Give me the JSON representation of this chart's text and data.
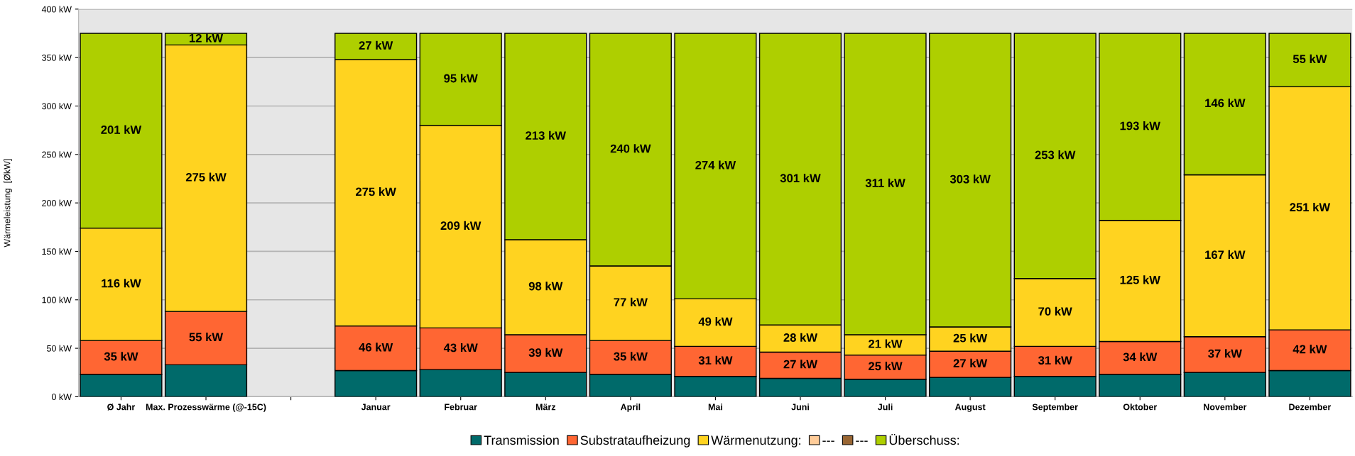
{
  "chart_data": {
    "type": "bar",
    "stacked": true,
    "ylabel": "Wärmeleistung  [ØkW]",
    "categories": [
      "Ø Jahr",
      "Max. Prozesswärme (@-15C)",
      null,
      "Januar",
      "Februar",
      "März",
      "April",
      "Mai",
      "Juni",
      "Juli",
      "August",
      "September",
      "Oktober",
      "November",
      "Dezember"
    ],
    "ylim": [
      0,
      400
    ],
    "yticks": [
      {
        "value": 0,
        "label": "0 kW"
      },
      {
        "value": 50,
        "label": "50 kW"
      },
      {
        "value": 100,
        "label": "100 kW"
      },
      {
        "value": 150,
        "label": "150 kW"
      },
      {
        "value": 200,
        "label": "200 kW"
      },
      {
        "value": 250,
        "label": "250 kW"
      },
      {
        "value": 300,
        "label": "300 kW"
      },
      {
        "value": 350,
        "label": "350 kW"
      },
      {
        "value": 400,
        "label": "400 kW"
      }
    ],
    "grid": "y",
    "legend": "bottom",
    "series": [
      {
        "name": "Transmission",
        "color": "#006a6a",
        "values": [
          23,
          33,
          null,
          27,
          28,
          25,
          23,
          21,
          19,
          18,
          20,
          21,
          23,
          25,
          27
        ]
      },
      {
        "name": "Substrataufheizung",
        "color": "#ff6633",
        "values": [
          35,
          55,
          null,
          46,
          43,
          39,
          35,
          31,
          27,
          25,
          27,
          31,
          34,
          37,
          42
        ],
        "value_labels": [
          "35 kW",
          "55 kW",
          null,
          "46 kW",
          "43 kW",
          "39 kW",
          "35 kW",
          "31 kW",
          "27 kW",
          "25 kW",
          "27 kW",
          "31 kW",
          "34 kW",
          "37 kW",
          "42 kW"
        ]
      },
      {
        "name": "Wärmenutzung:",
        "color": "#ffd320",
        "values": [
          116,
          275,
          null,
          275,
          209,
          98,
          77,
          49,
          28,
          21,
          25,
          70,
          125,
          167,
          251
        ],
        "value_labels": [
          "116 kW",
          "275 kW",
          null,
          "275 kW",
          "209 kW",
          "98 kW",
          "77 kW",
          "49 kW",
          "28 kW",
          "21 kW",
          "25 kW",
          "70 kW",
          "125 kW",
          "167 kW",
          "251 kW"
        ]
      },
      {
        "name": "---",
        "color": "#ffcc99",
        "values": [
          null,
          null,
          null,
          null,
          null,
          null,
          null,
          null,
          null,
          null,
          null,
          null,
          null,
          null,
          null
        ]
      },
      {
        "name": "---",
        "color": "#996633",
        "values": [
          null,
          null,
          null,
          null,
          null,
          null,
          null,
          null,
          null,
          null,
          null,
          null,
          null,
          null,
          null
        ]
      },
      {
        "name": "Überschuss:",
        "color": "#aecf00",
        "values": [
          201,
          12,
          null,
          27,
          95,
          213,
          240,
          274,
          301,
          311,
          303,
          253,
          193,
          146,
          55
        ],
        "value_labels": [
          "201 kW",
          "12 kW",
          null,
          "27 kW",
          "95 kW",
          "213 kW",
          "240 kW",
          "274 kW",
          "301 kW",
          "311 kW",
          "303 kW",
          "253 kW",
          "193 kW",
          "146 kW",
          "55 kW"
        ]
      }
    ]
  }
}
